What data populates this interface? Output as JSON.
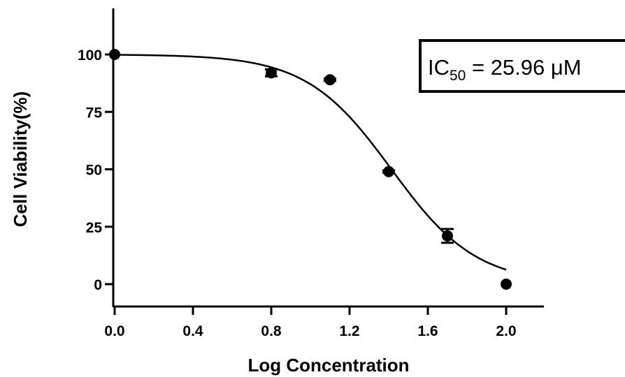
{
  "chart_data": {
    "type": "scatter",
    "title": "",
    "xlabel": "Log Concentration",
    "ylabel": "Cell Viability(%)",
    "xlim": [
      0.0,
      2.15
    ],
    "ylim": [
      -10,
      120
    ],
    "xticks": [
      0.0,
      0.4,
      0.8,
      1.2,
      1.6,
      2.0
    ],
    "xtick_labels": [
      "0.0",
      "0.4",
      "0.8",
      "1.2",
      "1.6",
      "2.0"
    ],
    "yticks": [
      0,
      25,
      50,
      75,
      100
    ],
    "ytick_labels": [
      "0",
      "25",
      "50",
      "75",
      "100"
    ],
    "grid": false,
    "points": [
      {
        "x": 0.0,
        "y": 100.0,
        "err": 0.0
      },
      {
        "x": 0.8,
        "y": 92.0,
        "err": 1.5
      },
      {
        "x": 1.1,
        "y": 89.0,
        "err": 0.5
      },
      {
        "x": 1.4,
        "y": 49.0,
        "err": 0.5
      },
      {
        "x": 1.7,
        "y": 21.0,
        "err": 3.0
      },
      {
        "x": 2.0,
        "y": 0.0,
        "err": 0.0
      }
    ],
    "fit": {
      "model": "sigmoidal dose-response",
      "top": 100,
      "bottom": 0,
      "logIC50": 1.414,
      "hill_slope": -2.0,
      "x_range": [
        0.0,
        2.0
      ]
    },
    "annotation": {
      "prefix": "IC",
      "subscript": "50",
      "suffix": " = 25.96 μM"
    }
  }
}
